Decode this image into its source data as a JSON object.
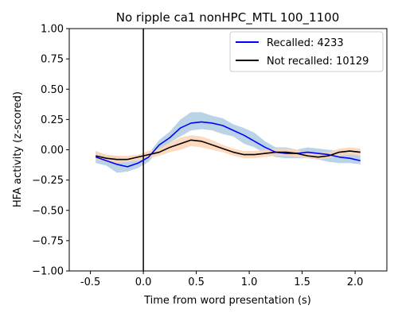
{
  "chart_data": {
    "type": "line",
    "title": "No ripple ca1 nonHPC_MTL 100_1100",
    "xlabel": "Time from word presentation (s)",
    "ylabel": "HFA activity (z-scored)",
    "xlim": [
      -0.7,
      2.3
    ],
    "ylim": [
      -1.0,
      1.0
    ],
    "x_ticks": [
      -0.5,
      0.0,
      0.5,
      1.0,
      1.5,
      2.0
    ],
    "x_tick_labels": [
      "-0.5",
      "0.0",
      "0.5",
      "1.0",
      "1.5",
      "2.0"
    ],
    "y_ticks": [
      -1.0,
      -0.75,
      -0.5,
      -0.25,
      0.0,
      0.25,
      0.5,
      0.75,
      1.0
    ],
    "y_tick_labels": [
      "−1.00",
      "−0.75",
      "−0.50",
      "−0.25",
      "0.00",
      "0.25",
      "0.50",
      "0.75",
      "1.00"
    ],
    "grid": false,
    "vline_x": 0.0,
    "legend": {
      "placement": "top-right"
    },
    "x": [
      -0.45,
      -0.35,
      -0.25,
      -0.15,
      -0.05,
      0.05,
      0.15,
      0.25,
      0.35,
      0.45,
      0.55,
      0.65,
      0.75,
      0.85,
      0.95,
      1.05,
      1.15,
      1.25,
      1.35,
      1.45,
      1.55,
      1.65,
      1.75,
      1.85,
      1.95,
      2.05
    ],
    "series": [
      {
        "name": "Recalled: 4233",
        "color": "#0000ff",
        "band_color": "#aecbe3",
        "values": [
          -0.06,
          -0.09,
          -0.12,
          -0.14,
          -0.11,
          -0.06,
          0.04,
          0.1,
          0.18,
          0.22,
          0.23,
          0.22,
          0.2,
          0.16,
          0.12,
          0.07,
          0.02,
          -0.02,
          -0.03,
          -0.03,
          -0.02,
          -0.03,
          -0.04,
          -0.06,
          -0.07,
          -0.09
        ],
        "lower": [
          -0.11,
          -0.13,
          -0.19,
          -0.18,
          -0.15,
          -0.1,
          0.0,
          0.06,
          0.11,
          0.16,
          0.17,
          0.16,
          0.13,
          0.11,
          0.05,
          0.02,
          -0.03,
          -0.06,
          -0.07,
          -0.07,
          -0.07,
          -0.08,
          -0.1,
          -0.11,
          -0.11,
          -0.12
        ],
        "upper": [
          -0.01,
          -0.05,
          -0.05,
          -0.1,
          -0.07,
          -0.03,
          0.08,
          0.15,
          0.25,
          0.31,
          0.31,
          0.28,
          0.26,
          0.21,
          0.18,
          0.14,
          0.07,
          0.02,
          0.02,
          0.0,
          0.02,
          0.01,
          0.0,
          -0.01,
          -0.03,
          -0.05
        ]
      },
      {
        "name": "Not recalled: 10129",
        "color": "#000000",
        "band_color": "#fdd4b4",
        "values": [
          -0.05,
          -0.07,
          -0.08,
          -0.08,
          -0.06,
          -0.04,
          -0.02,
          0.02,
          0.05,
          0.08,
          0.07,
          0.04,
          0.01,
          -0.02,
          -0.04,
          -0.04,
          -0.03,
          -0.02,
          -0.02,
          -0.03,
          -0.05,
          -0.06,
          -0.05,
          -0.02,
          -0.01,
          -0.02
        ],
        "lower": [
          -0.08,
          -0.1,
          -0.11,
          -0.1,
          -0.09,
          -0.07,
          -0.05,
          -0.02,
          0.0,
          0.03,
          0.02,
          0.0,
          -0.02,
          -0.05,
          -0.07,
          -0.07,
          -0.06,
          -0.05,
          -0.05,
          -0.06,
          -0.07,
          -0.08,
          -0.07,
          -0.05,
          -0.04,
          -0.05
        ],
        "upper": [
          -0.01,
          -0.04,
          -0.05,
          -0.05,
          -0.04,
          -0.01,
          0.01,
          0.06,
          0.1,
          0.12,
          0.11,
          0.08,
          0.04,
          0.01,
          -0.01,
          -0.01,
          0.0,
          0.01,
          0.01,
          0.0,
          -0.02,
          -0.03,
          -0.02,
          0.01,
          0.02,
          0.01
        ]
      }
    ]
  }
}
